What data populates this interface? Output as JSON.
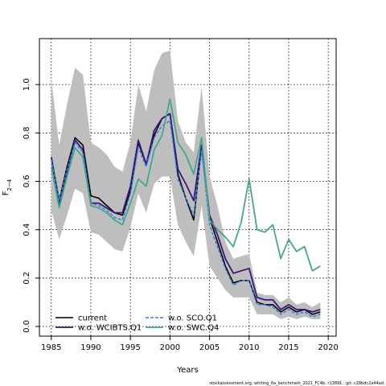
{
  "chart_data": {
    "type": "line",
    "title": "",
    "xlabel": "Years",
    "ylabel": "F",
    "ylabel_sub": "2−4",
    "xlim": [
      1983.5,
      2021
    ],
    "ylim": [
      -0.04,
      1.19
    ],
    "xticks": [
      1985,
      1990,
      1995,
      2000,
      2005,
      2010,
      2015,
      2020
    ],
    "yticks": [
      0.0,
      0.2,
      0.4,
      0.6,
      0.8,
      1.0
    ],
    "ytick_labels": [
      "0.0",
      "0.2",
      "0.4",
      "0.6",
      "0.8",
      "1.0"
    ],
    "grid": true,
    "legend_position": "bottom-left",
    "x": [
      1985,
      1986,
      1987,
      1988,
      1989,
      1990,
      1991,
      1992,
      1993,
      1994,
      1995,
      1996,
      1997,
      1998,
      1999,
      2000,
      2001,
      2002,
      2003,
      2004,
      2005,
      2006,
      2007,
      2008,
      2009,
      2010,
      2011,
      2012,
      2013,
      2014,
      2015,
      2016,
      2017,
      2018,
      2019
    ],
    "band": {
      "upper": [
        1.02,
        0.75,
        0.92,
        1.07,
        1.04,
        0.76,
        0.74,
        0.71,
        0.66,
        0.64,
        0.76,
        1.0,
        0.89,
        1.06,
        1.13,
        1.14,
        0.85,
        0.76,
        0.72,
        0.99,
        0.62,
        0.5,
        0.35,
        0.28,
        0.29,
        0.3,
        0.14,
        0.13,
        0.13,
        0.1,
        0.12,
        0.09,
        0.1,
        0.08,
        0.1
      ],
      "lower": [
        0.48,
        0.36,
        0.46,
        0.57,
        0.55,
        0.39,
        0.38,
        0.35,
        0.32,
        0.31,
        0.41,
        0.55,
        0.47,
        0.59,
        0.62,
        0.62,
        0.42,
        0.35,
        0.29,
        0.5,
        0.25,
        0.2,
        0.15,
        0.12,
        0.12,
        0.12,
        0.05,
        0.05,
        0.05,
        0.03,
        0.04,
        0.03,
        0.04,
        0.03,
        0.03
      ]
    },
    "series": [
      {
        "name": "current",
        "color": "#000000",
        "dash": "solid",
        "width": 1.6,
        "values": [
          0.7,
          0.52,
          0.66,
          0.78,
          0.75,
          0.54,
          0.53,
          0.5,
          0.47,
          0.46,
          0.56,
          0.76,
          0.67,
          0.79,
          0.86,
          0.88,
          0.63,
          0.53,
          0.44,
          0.75,
          0.45,
          0.35,
          0.25,
          0.18,
          0.19,
          0.19,
          0.1,
          0.09,
          0.09,
          0.06,
          0.08,
          0.06,
          0.07,
          0.05,
          0.06
        ]
      },
      {
        "name": "w.o. WCIBTS.Q1",
        "color": "#3b1580",
        "dash": "solid",
        "width": 1.8,
        "values": [
          0.7,
          0.5,
          0.64,
          0.77,
          0.73,
          0.51,
          0.51,
          0.49,
          0.47,
          0.47,
          0.58,
          0.77,
          0.67,
          0.81,
          0.86,
          0.88,
          0.65,
          0.59,
          0.52,
          0.75,
          0.46,
          0.38,
          0.28,
          0.22,
          0.23,
          0.24,
          0.12,
          0.11,
          0.11,
          0.07,
          0.09,
          0.07,
          0.07,
          0.06,
          0.07
        ]
      },
      {
        "name": "w.o. SCO.Q1",
        "color": "#2f7fd6",
        "dash": "dashed",
        "width": 1.4,
        "values": [
          0.69,
          0.52,
          0.65,
          0.76,
          0.72,
          0.51,
          0.5,
          0.48,
          0.45,
          0.44,
          0.55,
          0.74,
          0.66,
          0.78,
          0.83,
          0.85,
          0.61,
          0.53,
          0.46,
          0.73,
          0.42,
          0.33,
          0.24,
          0.17,
          0.19,
          0.19,
          0.09,
          0.09,
          0.08,
          0.05,
          0.07,
          0.05,
          0.06,
          0.04,
          0.05
        ]
      },
      {
        "name": "w.o. SWC.Q4",
        "color": "#3fa98e",
        "dash": "solid",
        "width": 1.8,
        "values": [
          0.66,
          0.49,
          0.62,
          0.74,
          0.7,
          0.5,
          0.49,
          0.47,
          0.44,
          0.42,
          0.51,
          0.61,
          0.58,
          0.73,
          0.79,
          0.94,
          0.76,
          0.71,
          0.63,
          0.78,
          0.44,
          0.4,
          0.37,
          0.33,
          0.43,
          0.61,
          0.4,
          0.39,
          0.42,
          0.28,
          0.36,
          0.31,
          0.33,
          0.23,
          0.25
        ]
      }
    ]
  },
  "footer": "stockassessment.org,  whiting_6a_benchmark_2021_FC4b, r13891 , git: c28bdc2a44ad"
}
